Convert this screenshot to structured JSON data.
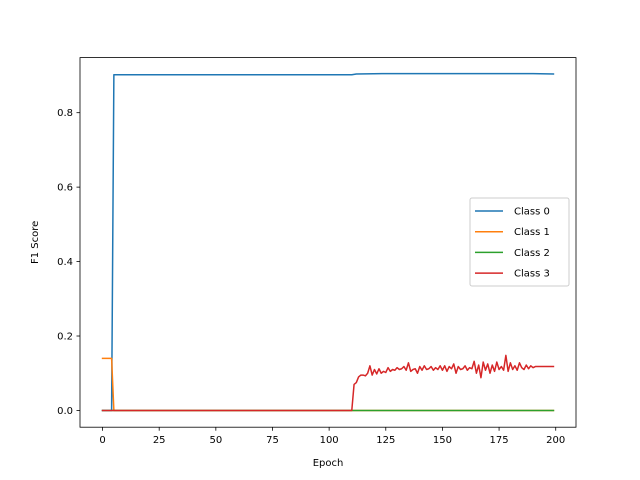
{
  "chart_data": {
    "type": "line",
    "title": "",
    "xlabel": "Epoch",
    "ylabel": "F1 Score",
    "xlim": [
      -9.95,
      208.95
    ],
    "ylim": [
      -0.045,
      0.948
    ],
    "xticks": [
      0,
      25,
      50,
      75,
      100,
      125,
      150,
      175,
      200
    ],
    "xtick_labels": [
      "0",
      "25",
      "50",
      "75",
      "100",
      "125",
      "150",
      "175",
      "200"
    ],
    "yticks": [
      0.0,
      0.2,
      0.4,
      0.6,
      0.8
    ],
    "ytick_labels": [
      "0.0",
      "0.2",
      "0.4",
      "0.6",
      "0.8"
    ],
    "grid": false,
    "legend_position": "center-right",
    "series": [
      {
        "name": "Class 0",
        "color": "#1f77b4",
        "x": [
          0,
          4,
          5,
          20,
          50,
          80,
          110,
          112,
          125,
          150,
          175,
          190,
          199
        ],
        "y": [
          0.0,
          0.0,
          0.902,
          0.902,
          0.902,
          0.902,
          0.902,
          0.904,
          0.905,
          0.905,
          0.905,
          0.905,
          0.904
        ]
      },
      {
        "name": "Class 1",
        "color": "#ff7f0e",
        "x": [
          0,
          4,
          5,
          50,
          100,
          150,
          199
        ],
        "y": [
          0.14,
          0.14,
          0.0,
          0.0,
          0.0,
          0.0,
          0.0
        ]
      },
      {
        "name": "Class 2",
        "color": "#2ca02c",
        "x": [
          0,
          50,
          100,
          150,
          199
        ],
        "y": [
          0.0,
          0.0,
          0.0,
          0.0,
          0.0
        ]
      },
      {
        "name": "Class 3",
        "color": "#d62728",
        "x": [
          0,
          50,
          100,
          110,
          111,
          112,
          113,
          114,
          115,
          116,
          117,
          118,
          119,
          120,
          121,
          122,
          123,
          124,
          125,
          126,
          127,
          128,
          129,
          130,
          131,
          132,
          133,
          134,
          135,
          136,
          137,
          138,
          139,
          140,
          141,
          142,
          143,
          144,
          145,
          146,
          147,
          148,
          149,
          150,
          151,
          152,
          153,
          154,
          155,
          156,
          157,
          158,
          159,
          160,
          161,
          162,
          163,
          164,
          165,
          166,
          167,
          168,
          169,
          170,
          171,
          172,
          173,
          174,
          175,
          176,
          177,
          178,
          179,
          180,
          181,
          182,
          183,
          184,
          185,
          186,
          187,
          188,
          189,
          190,
          191,
          192,
          193,
          194,
          195,
          196,
          197,
          198,
          199
        ],
        "y": [
          0.0,
          0.0,
          0.0,
          0.0,
          0.07,
          0.075,
          0.09,
          0.095,
          0.095,
          0.093,
          0.1,
          0.12,
          0.095,
          0.11,
          0.098,
          0.112,
          0.1,
          0.105,
          0.102,
          0.115,
          0.105,
          0.11,
          0.108,
          0.115,
          0.11,
          0.112,
          0.118,
          0.108,
          0.128,
          0.105,
          0.11,
          0.112,
          0.1,
          0.118,
          0.108,
          0.12,
          0.11,
          0.112,
          0.118,
          0.108,
          0.115,
          0.11,
          0.12,
          0.108,
          0.12,
          0.105,
          0.118,
          0.112,
          0.125,
          0.1,
          0.118,
          0.11,
          0.112,
          0.12,
          0.108,
          0.115,
          0.112,
          0.132,
          0.1,
          0.122,
          0.088,
          0.13,
          0.108,
          0.125,
          0.1,
          0.122,
          0.105,
          0.13,
          0.11,
          0.118,
          0.108,
          0.148,
          0.105,
          0.128,
          0.11,
          0.12,
          0.108,
          0.128,
          0.115,
          0.11,
          0.122,
          0.112,
          0.12,
          0.115,
          0.118,
          0.118,
          0.118,
          0.118,
          0.118,
          0.118,
          0.118,
          0.118,
          0.118
        ]
      }
    ]
  }
}
